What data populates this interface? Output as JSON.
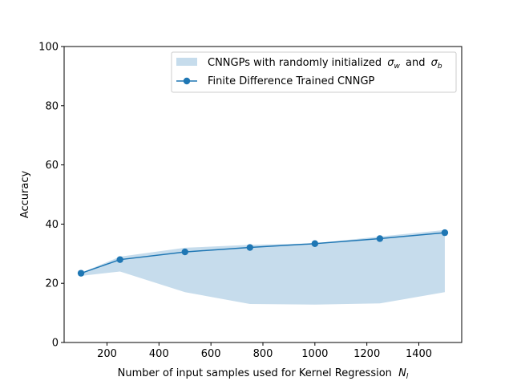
{
  "chart_data": {
    "type": "line",
    "xlabel": "Number of input samples used for Kernel Regression",
    "xlabel_symbol": "N",
    "xlabel_subscript": "l",
    "ylabel": "Accuracy",
    "xlim": [
      35,
      1565
    ],
    "ylim": [
      0,
      100
    ],
    "xticks": [
      200,
      400,
      600,
      800,
      1000,
      1200,
      1400
    ],
    "yticks": [
      0,
      20,
      40,
      60,
      80,
      100
    ],
    "grid": false,
    "legend_position": "top-right",
    "band": {
      "name_prefix": "CNNGPs with randomly initialized",
      "name_symbol_1": "σ",
      "name_sub_1": "w",
      "name_and": "and",
      "name_symbol_2": "σ",
      "name_sub_2": "b",
      "color": "#c6dcec",
      "x": [
        100,
        250,
        500,
        750,
        1000,
        1250,
        1500
      ],
      "lower": [
        22.5,
        24.0,
        17.0,
        13.0,
        12.8,
        13.2,
        17.0
      ],
      "upper": [
        23.5,
        29.0,
        32.0,
        33.0,
        33.5,
        35.8,
        38.0
      ]
    },
    "series": [
      {
        "name": "Finite Difference Trained CNNGP",
        "color": "#1f77b4",
        "marker": "circle",
        "x": [
          100,
          250,
          500,
          750,
          1000,
          1250,
          1500
        ],
        "values": [
          23.4,
          28.0,
          30.6,
          32.1,
          33.4,
          35.1,
          37.1
        ]
      }
    ]
  }
}
